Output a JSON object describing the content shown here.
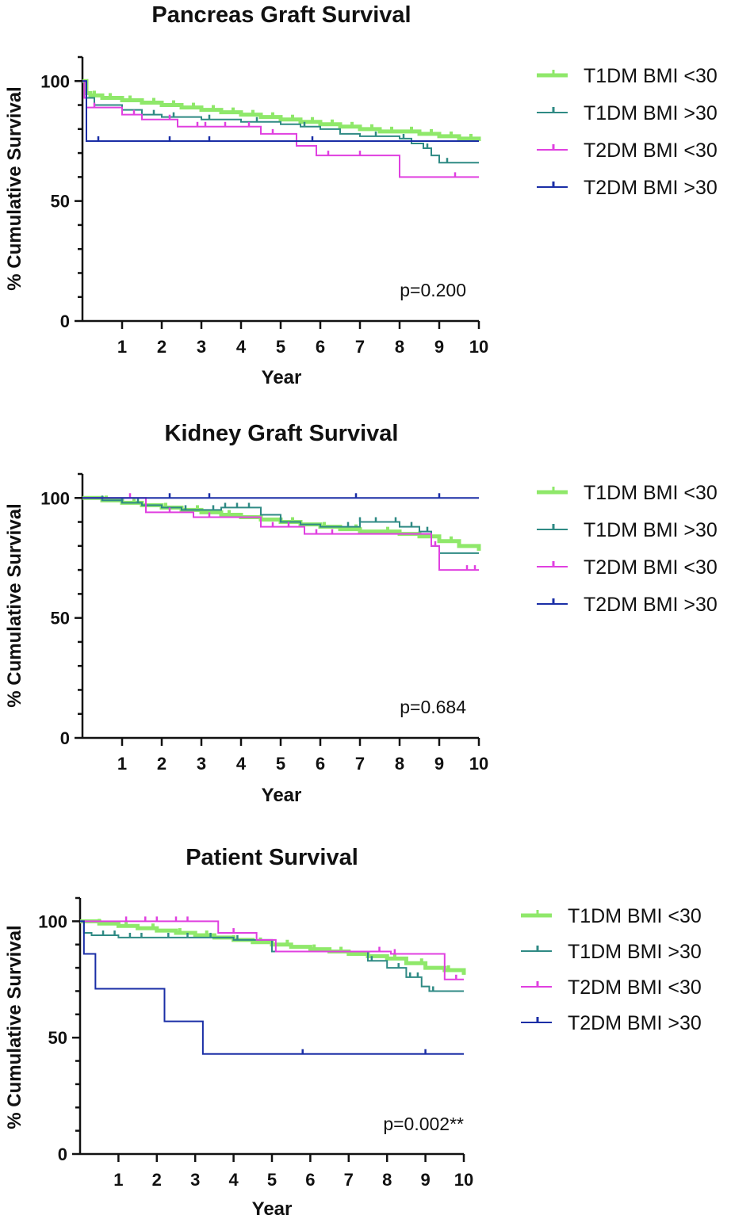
{
  "chart_data": [
    {
      "type": "line",
      "subtype": "kaplan-meier",
      "title": "Pancreas Graft Survival",
      "xlabel": "Year",
      "ylabel": "% Cumulative Survival",
      "xlim": [
        0,
        10
      ],
      "ylim": [
        0,
        110
      ],
      "xticks": [
        "1",
        "2",
        "3",
        "4",
        "5",
        "6",
        "7",
        "8",
        "9",
        "10"
      ],
      "yticks": [
        "0",
        "50",
        "100"
      ],
      "annotation": "p=0.200",
      "legend_position": "right",
      "series": [
        {
          "name": "T1DM BMI <30",
          "color": "#8fe86a",
          "width": 5,
          "x": [
            0,
            0.1,
            0.2,
            0.5,
            1,
            1.5,
            2,
            2.5,
            3,
            3.5,
            4,
            4.5,
            5,
            5.5,
            6,
            6.5,
            7,
            7.5,
            8,
            8.5,
            9,
            9.5,
            10
          ],
          "y": [
            100,
            95,
            94,
            93,
            92,
            91,
            90,
            89,
            88,
            87,
            86,
            85,
            84,
            83,
            82,
            81,
            80,
            79,
            79,
            78,
            77,
            76,
            75
          ],
          "censor": [
            0.3,
            0.7,
            1.2,
            1.8,
            2.3,
            2.8,
            3.3,
            3.8,
            4.3,
            4.8,
            5.3,
            5.8,
            6.3,
            6.8,
            7.3,
            7.8,
            8.3,
            8.8,
            9.3,
            9.8
          ]
        },
        {
          "name": "T1DM BMI >30",
          "color": "#2f8a84",
          "width": 2,
          "x": [
            0,
            0.1,
            0.3,
            1,
            1.5,
            2,
            3,
            4,
            5,
            5.5,
            6,
            6.5,
            7,
            7.5,
            8,
            8.3,
            8.6,
            8.8,
            9,
            10
          ],
          "y": [
            100,
            93,
            90,
            88,
            86,
            85,
            84,
            83,
            82,
            81,
            80,
            78,
            77,
            77,
            76,
            74,
            72,
            69,
            66,
            66
          ],
          "censor": [
            1.8,
            2.3,
            3.2,
            4.4,
            5.6,
            7.4,
            8.1,
            8.7,
            9.2
          ]
        },
        {
          "name": "T2DM BMI <30",
          "color": "#e040e0",
          "width": 2,
          "x": [
            0,
            0.05,
            0.1,
            0.4,
            1,
            1.5,
            2,
            2.4,
            3.3,
            4.5,
            5.4,
            5.8,
            5.9,
            7,
            8,
            10
          ],
          "y": [
            100,
            93,
            89,
            89,
            86,
            84,
            84,
            81,
            81,
            78,
            73,
            73,
            69,
            69,
            60,
            60
          ],
          "censor": [
            0.3,
            1.3,
            2.2,
            2.9,
            3.1,
            3.6,
            4.2,
            4.8,
            6.2,
            7.0,
            9.4
          ]
        },
        {
          "name": "T2DM BMI >30",
          "color": "#1a2ea6",
          "width": 2,
          "x": [
            0,
            0.1,
            10
          ],
          "y": [
            100,
            75,
            75
          ],
          "censor": [
            0.4,
            2.2,
            3.2,
            5.8
          ]
        }
      ]
    },
    {
      "type": "line",
      "subtype": "kaplan-meier",
      "title": "Kidney Graft Survival",
      "xlabel": "Year",
      "ylabel": "% Cumulative Survival",
      "xlim": [
        0,
        10
      ],
      "ylim": [
        0,
        110
      ],
      "xticks": [
        "1",
        "2",
        "3",
        "4",
        "5",
        "6",
        "7",
        "8",
        "9",
        "10"
      ],
      "yticks": [
        "0",
        "50",
        "100"
      ],
      "annotation": "p=0.684",
      "legend_position": "right",
      "series": [
        {
          "name": "T1DM BMI <30",
          "color": "#8fe86a",
          "width": 5,
          "x": [
            0,
            0.5,
            1,
            1.5,
            2,
            2.5,
            3,
            3.5,
            4,
            4.5,
            5,
            5.5,
            6,
            6.5,
            7,
            7.5,
            8,
            8.5,
            9,
            9.5,
            10
          ],
          "y": [
            100,
            99,
            98,
            97,
            96,
            95,
            94,
            93,
            92,
            91,
            90,
            89,
            88,
            87,
            86,
            86,
            85,
            84,
            82,
            80,
            78
          ],
          "censor": [
            0.6,
            1.3,
            2.1,
            2.9,
            3.7,
            4.5,
            5.3,
            6.1,
            6.9,
            7.7,
            8.5,
            9.3
          ]
        },
        {
          "name": "T1DM BMI >30",
          "color": "#2f8a84",
          "width": 2,
          "x": [
            0,
            0.5,
            1,
            1.5,
            2,
            2.5,
            3,
            3.5,
            4,
            4.5,
            5,
            5.5,
            6,
            6.5,
            7,
            7.5,
            8,
            8.5,
            8.8,
            9,
            10
          ],
          "y": [
            100,
            99,
            98,
            97,
            96,
            95,
            95,
            96,
            96,
            93,
            90,
            89,
            88,
            88,
            90,
            90,
            88,
            86,
            80,
            77,
            77
          ],
          "censor": [
            0.5,
            1.0,
            1.4,
            2.6,
            3.3,
            3.6,
            3.9,
            4.2,
            5.0,
            6.7,
            7.0,
            7.4,
            7.9,
            8.3,
            8.7
          ]
        },
        {
          "name": "T2DM BMI <30",
          "color": "#e040e0",
          "width": 2,
          "x": [
            0,
            1.5,
            1.6,
            2.7,
            2.8,
            4.4,
            4.5,
            5.5,
            5.6,
            7.2,
            7.3,
            8.7,
            8.8,
            9,
            10
          ],
          "y": [
            100,
            100,
            94,
            94,
            92,
            92,
            88,
            88,
            85,
            85,
            85,
            85,
            80,
            70,
            70
          ],
          "censor": [
            1.2,
            2.2,
            3.2,
            4.8,
            5.2,
            5.9,
            6.3,
            8.9,
            9.7,
            9.9
          ]
        },
        {
          "name": "T2DM BMI >30",
          "color": "#1a2ea6",
          "width": 2,
          "x": [
            0,
            10
          ],
          "y": [
            100,
            100
          ],
          "censor": [
            2.2,
            3.2,
            6.9,
            9.0
          ]
        }
      ]
    },
    {
      "type": "line",
      "subtype": "kaplan-meier",
      "title": "Patient Survival",
      "xlabel": "Year",
      "ylabel": "% Cumulative Survival",
      "xlim": [
        0,
        10
      ],
      "ylim": [
        0,
        110
      ],
      "xticks": [
        "1",
        "2",
        "3",
        "4",
        "5",
        "6",
        "7",
        "8",
        "9",
        "10"
      ],
      "yticks": [
        "0",
        "50",
        "100"
      ],
      "annotation": "p=0.002**",
      "legend_position": "right",
      "series": [
        {
          "name": "T1DM BMI <30",
          "color": "#8fe86a",
          "width": 5,
          "x": [
            0,
            0.5,
            1,
            1.5,
            2,
            2.5,
            3,
            3.5,
            4,
            4.5,
            5,
            5.5,
            6,
            6.5,
            7,
            7.5,
            8,
            8.5,
            9,
            9.5,
            10
          ],
          "y": [
            100,
            99,
            98,
            97,
            96,
            95,
            94,
            93,
            92,
            91,
            90,
            89,
            88,
            87,
            86,
            85,
            84,
            82,
            80,
            79,
            77
          ],
          "censor": [
            0.5,
            1.2,
            1.9,
            2.6,
            3.3,
            4.0,
            4.7,
            5.4,
            6.1,
            6.8,
            7.5,
            8.2,
            8.9,
            9.6
          ]
        },
        {
          "name": "T1DM BMI >30",
          "color": "#2f8a84",
          "width": 2,
          "x": [
            0,
            0.1,
            0.3,
            1,
            2,
            3,
            4,
            5,
            6,
            6.5,
            7,
            7.5,
            8,
            8.5,
            8.9,
            9.1,
            10
          ],
          "y": [
            100,
            95,
            94,
            93,
            93,
            93,
            92,
            87,
            87,
            87,
            87,
            83,
            80,
            76,
            72,
            70,
            70
          ],
          "censor": [
            0.6,
            0.9,
            1.3,
            1.6,
            2.3,
            2.8,
            3.4,
            4.1,
            7.6,
            8.3,
            8.6,
            8.8,
            9.2
          ]
        },
        {
          "name": "T2DM BMI <30",
          "color": "#e040e0",
          "width": 2,
          "x": [
            0,
            3.5,
            3.6,
            4.5,
            4.6,
            5,
            5.1,
            8,
            8.1,
            9.4,
            9.5,
            10
          ],
          "y": [
            100,
            100,
            95,
            95,
            92,
            92,
            87,
            87,
            86,
            86,
            75,
            75
          ],
          "censor": [
            1.2,
            1.7,
            2.0,
            2.5,
            2.8,
            4.0,
            7.8,
            8.2,
            9.8
          ]
        },
        {
          "name": "T2DM BMI >30",
          "color": "#1a2ea6",
          "width": 2,
          "x": [
            0,
            0.1,
            0.4,
            2.2,
            3.2,
            10
          ],
          "y": [
            100,
            86,
            71,
            57,
            43,
            43
          ],
          "censor": [
            5.8,
            9.0
          ]
        }
      ]
    }
  ]
}
